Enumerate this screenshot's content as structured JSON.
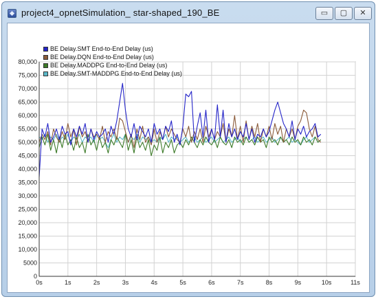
{
  "window": {
    "title": "project4_opnetSimulation_ star-shaped_190_BE",
    "controls": {
      "minimize": "▭",
      "maximize": "▢",
      "close": "✕"
    }
  },
  "colors": {
    "frame": "#c4d7ec",
    "grid": "#d2d2d2",
    "axis": "#333333"
  },
  "chart_data": {
    "type": "line",
    "title": "",
    "xlabel": "",
    "ylabel": "",
    "xlim": [
      0,
      11
    ],
    "ylim": [
      0,
      80000
    ],
    "grid": true,
    "legend": "top-left",
    "x_ticks": [
      0,
      1,
      2,
      3,
      4,
      5,
      6,
      7,
      8,
      9,
      10,
      11
    ],
    "x_tick_labels": [
      "0s",
      "1s",
      "2s",
      "3s",
      "4s",
      "5s",
      "6s",
      "7s",
      "8s",
      "9s",
      "10s",
      "11s"
    ],
    "y_ticks": [
      0,
      5000,
      10000,
      15000,
      20000,
      25000,
      30000,
      35000,
      40000,
      45000,
      50000,
      55000,
      60000,
      65000,
      70000,
      75000,
      80000
    ],
    "y_tick_labels": [
      "0",
      "5000",
      "10,000",
      "15,000",
      "20,000",
      "25,000",
      "30,000",
      "35,000",
      "40,000",
      "45,000",
      "50,000",
      "55,000",
      "60,000",
      "65,000",
      "70,000",
      "75,000",
      "80,000"
    ],
    "series": [
      {
        "name": "BE Delay.SMT End-to-End Delay (us)",
        "color": "#2424c8",
        "x": [
          0.0,
          0.1,
          0.2,
          0.3,
          0.4,
          0.5,
          0.6,
          0.7,
          0.8,
          0.9,
          1.0,
          1.1,
          1.2,
          1.3,
          1.4,
          1.5,
          1.6,
          1.7,
          1.8,
          1.9,
          2.0,
          2.1,
          2.2,
          2.3,
          2.4,
          2.5,
          2.6,
          2.7,
          2.8,
          2.9,
          3.0,
          3.1,
          3.2,
          3.3,
          3.4,
          3.5,
          3.6,
          3.7,
          3.8,
          3.9,
          4.0,
          4.1,
          4.2,
          4.3,
          4.4,
          4.5,
          4.6,
          4.7,
          4.8,
          4.9,
          5.0,
          5.1,
          5.2,
          5.3,
          5.4,
          5.5,
          5.6,
          5.7,
          5.8,
          5.9,
          6.0,
          6.1,
          6.2,
          6.3,
          6.4,
          6.5,
          6.6,
          6.7,
          6.8,
          6.9,
          7.0,
          7.1,
          7.2,
          7.3,
          7.4,
          7.5,
          7.6,
          7.7,
          7.8,
          7.9,
          8.0,
          8.1,
          8.2,
          8.3,
          8.4,
          8.5,
          8.6,
          8.7,
          8.8,
          8.9,
          9.0,
          9.1,
          9.2,
          9.3,
          9.4,
          9.5,
          9.6,
          9.7,
          9.8
        ],
        "values": [
          37000,
          55000,
          52000,
          57000,
          50000,
          52000,
          55000,
          51000,
          56000,
          53000,
          54000,
          49000,
          55000,
          52000,
          56000,
          53000,
          57000,
          50000,
          55000,
          51000,
          54000,
          52000,
          53000,
          55000,
          50000,
          56000,
          53000,
          58000,
          65000,
          72000,
          62000,
          55000,
          52000,
          57000,
          51000,
          56000,
          54000,
          52000,
          55000,
          50000,
          57000,
          53000,
          55000,
          51000,
          56000,
          54000,
          58000,
          50000,
          53000,
          49000,
          56000,
          68000,
          67000,
          69000,
          50000,
          56000,
          61000,
          52000,
          62000,
          50000,
          55000,
          51000,
          64000,
          52000,
          62000,
          50000,
          57000,
          52000,
          55000,
          51000,
          54000,
          52000,
          57000,
          51000,
          55000,
          50000,
          53000,
          52000,
          55000,
          52000,
          54000,
          58000,
          62000,
          65000,
          61000,
          57000,
          55000,
          52000,
          58000,
          51000,
          55000,
          53000,
          56000,
          52000,
          54000,
          55000,
          57000,
          52000,
          53000
        ]
      },
      {
        "name": "BE Delay.DQN End-to-End Delay (us)",
        "color": "#8a5a38",
        "x": [
          0.0,
          0.1,
          0.2,
          0.3,
          0.4,
          0.5,
          0.6,
          0.7,
          0.8,
          0.9,
          1.0,
          1.1,
          1.2,
          1.3,
          1.4,
          1.5,
          1.6,
          1.7,
          1.8,
          1.9,
          2.0,
          2.1,
          2.2,
          2.3,
          2.4,
          2.5,
          2.6,
          2.7,
          2.8,
          2.9,
          3.0,
          3.1,
          3.2,
          3.3,
          3.4,
          3.5,
          3.6,
          3.7,
          3.8,
          3.9,
          4.0,
          4.1,
          4.2,
          4.3,
          4.4,
          4.5,
          4.6,
          4.7,
          4.8,
          4.9,
          5.0,
          5.1,
          5.2,
          5.3,
          5.4,
          5.5,
          5.6,
          5.7,
          5.8,
          5.9,
          6.0,
          6.1,
          6.2,
          6.3,
          6.4,
          6.5,
          6.6,
          6.7,
          6.8,
          6.9,
          7.0,
          7.1,
          7.2,
          7.3,
          7.4,
          7.5,
          7.6,
          7.7,
          7.8,
          7.9,
          8.0,
          8.1,
          8.2,
          8.3,
          8.4,
          8.5,
          8.6,
          8.7,
          8.8,
          8.9,
          9.0,
          9.1,
          9.2,
          9.3,
          9.4,
          9.5,
          9.6,
          9.7,
          9.8
        ],
        "values": [
          50000,
          53000,
          51000,
          54000,
          49000,
          55000,
          52000,
          50000,
          54000,
          51000,
          57000,
          52000,
          55000,
          49000,
          56000,
          52000,
          54000,
          50000,
          55000,
          52000,
          53000,
          51000,
          56000,
          50000,
          54000,
          52000,
          55000,
          51000,
          59000,
          58000,
          54000,
          50000,
          53000,
          48000,
          55000,
          51000,
          56000,
          50000,
          52000,
          49000,
          55000,
          50000,
          54000,
          51000,
          56000,
          52000,
          55000,
          53000,
          51000,
          50000,
          55000,
          52000,
          56000,
          50000,
          54000,
          51000,
          55000,
          50000,
          56000,
          52000,
          55000,
          51000,
          54000,
          52000,
          57000,
          50000,
          55000,
          52000,
          60000,
          51000,
          56000,
          50000,
          58000,
          51000,
          56000,
          52000,
          57000,
          50000,
          55000,
          52000,
          56000,
          51000,
          57000,
          53000,
          56000,
          50000,
          55000,
          52000,
          55000,
          51000,
          56000,
          58000,
          62000,
          61000,
          55000,
          52000,
          56000,
          51000,
          50000
        ]
      },
      {
        "name": "BE Delay.MADDPG End-to-End Delay (us)",
        "color": "#3c7a28",
        "x": [
          0.0,
          0.1,
          0.2,
          0.3,
          0.4,
          0.5,
          0.6,
          0.7,
          0.8,
          0.9,
          1.0,
          1.1,
          1.2,
          1.3,
          1.4,
          1.5,
          1.6,
          1.7,
          1.8,
          1.9,
          2.0,
          2.1,
          2.2,
          2.3,
          2.4,
          2.5,
          2.6,
          2.7,
          2.8,
          2.9,
          3.0,
          3.1,
          3.2,
          3.3,
          3.4,
          3.5,
          3.6,
          3.7,
          3.8,
          3.9,
          4.0,
          4.1,
          4.2,
          4.3,
          4.4,
          4.5,
          4.6,
          4.7,
          4.8,
          4.9,
          5.0,
          5.1,
          5.2,
          5.3,
          5.4,
          5.5,
          5.6,
          5.7,
          5.8,
          5.9,
          6.0,
          6.1,
          6.2,
          6.3,
          6.4,
          6.5,
          6.6,
          6.7,
          6.8,
          6.9,
          7.0,
          7.1,
          7.2,
          7.3,
          7.4,
          7.5,
          7.6,
          7.7,
          7.8,
          7.9,
          8.0,
          8.1,
          8.2,
          8.3,
          8.4,
          8.5,
          8.6,
          8.7,
          8.8,
          8.9,
          9.0,
          9.1,
          9.2,
          9.3,
          9.4,
          9.5,
          9.6,
          9.7,
          9.8
        ],
        "values": [
          48000,
          52000,
          49000,
          53000,
          47000,
          51000,
          46000,
          52000,
          48000,
          53000,
          49000,
          51000,
          47000,
          52000,
          48000,
          50000,
          46000,
          53000,
          49000,
          51000,
          47000,
          52000,
          48000,
          50000,
          46000,
          51000,
          49000,
          52000,
          50000,
          48000,
          53000,
          47000,
          51000,
          46000,
          52000,
          48000,
          50000,
          47000,
          51000,
          45000,
          49000,
          47000,
          52000,
          46000,
          50000,
          48000,
          51000,
          46000,
          49000,
          50000,
          48000,
          51000,
          49000,
          52000,
          50000,
          48000,
          51000,
          49000,
          52000,
          50000,
          49000,
          51000,
          48000,
          52000,
          50000,
          49000,
          51000,
          48000,
          52000,
          50000,
          51000,
          49000,
          52000,
          50000,
          51000,
          49000,
          52000,
          50000,
          51000,
          48000,
          52000,
          50000,
          51000,
          49000,
          52000,
          50000,
          51000,
          49000,
          52000,
          50000,
          51000,
          49000,
          52000,
          50000,
          51000,
          49000,
          52000,
          50000,
          51000
        ]
      },
      {
        "name": "BE Delay.SMT-MADDPG End-to-End Delay (us)",
        "color": "#5ab8c8",
        "x": [
          0.0,
          0.1,
          0.2,
          0.3,
          0.4,
          0.5,
          0.6,
          0.7,
          0.8,
          0.9,
          1.0,
          1.1,
          1.2,
          1.3,
          1.4,
          1.5,
          1.6,
          1.7,
          1.8,
          1.9,
          2.0,
          2.1,
          2.2,
          2.3,
          2.4,
          2.5,
          2.6,
          2.7,
          2.8,
          2.9,
          3.0,
          3.1,
          3.2,
          3.3,
          3.4,
          3.5,
          3.6,
          3.7,
          3.8,
          3.9,
          4.0,
          4.1,
          4.2,
          4.3,
          4.4,
          4.5,
          4.6,
          4.7,
          4.8,
          4.9,
          5.0,
          5.1,
          5.2,
          5.3,
          5.4,
          5.5,
          5.6,
          5.7,
          5.8,
          5.9,
          6.0,
          6.1,
          6.2,
          6.3,
          6.4,
          6.5,
          6.6,
          6.7,
          6.8,
          6.9,
          7.0,
          7.1,
          7.2,
          7.3,
          7.4,
          7.5,
          7.6,
          7.7,
          7.8,
          7.9,
          8.0,
          8.1,
          8.2,
          8.3,
          8.4,
          8.5,
          8.6,
          8.7,
          8.8,
          8.9,
          9.0,
          9.1,
          9.2,
          9.3,
          9.4,
          9.5,
          9.6,
          9.7,
          9.8
        ],
        "values": [
          52000,
          51000,
          53000,
          50000,
          52000,
          51000,
          53000,
          50000,
          52000,
          51000,
          53000,
          50000,
          52000,
          51000,
          53000,
          50000,
          52000,
          51000,
          52000,
          50000,
          53000,
          51000,
          52000,
          50000,
          48000,
          51000,
          53000,
          50000,
          52000,
          51000,
          53000,
          50000,
          52000,
          51000,
          53000,
          50000,
          52000,
          51000,
          52000,
          50000,
          51000,
          50000,
          52000,
          51000,
          53000,
          50000,
          52000,
          51000,
          52000,
          50000,
          51000,
          52000,
          50000,
          51000,
          52000,
          50000,
          51000,
          52000,
          50000,
          51000,
          52000,
          50000,
          51000,
          52000,
          50000,
          51000,
          52000,
          50000,
          51000,
          52000,
          50000,
          51000,
          52000,
          50000,
          51000,
          52000,
          50000,
          51000,
          52000,
          50000,
          51000,
          52000,
          50000,
          51000,
          52000,
          50000,
          51000,
          52000,
          50000,
          51000,
          50000,
          49000,
          51000,
          52000,
          50000,
          51000,
          52000,
          50000,
          51000
        ]
      }
    ]
  }
}
